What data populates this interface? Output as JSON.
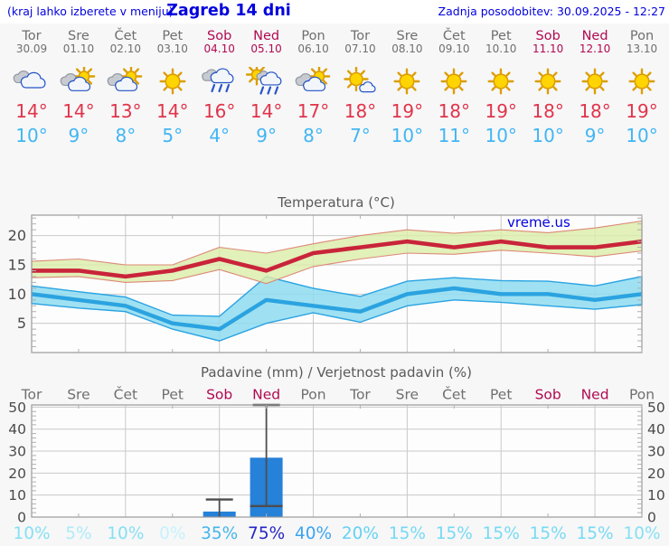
{
  "header": {
    "left_note": "(kraj lahko izberete v meniju)",
    "title": "Zagreb 14 dni",
    "updated": "Zadnja posodobitev: 30.09.2025 - 12:27"
  },
  "watermark": "vreme.us",
  "colors": {
    "header_blue": "#0202dd",
    "weekday": "#6f6f6f",
    "weekend": "#b00a50",
    "temp_max_text": "#e1344a",
    "temp_min_text": "#41b6f2",
    "line_max": "#c9243a",
    "line_min": "#2ba3e0",
    "band_max_fill": "#dcedaa",
    "band_max_edge": "#dd8877",
    "band_min_fill": "#8edcf0",
    "band_min_edge": "#2aa3e2",
    "bar_fill": "#2681d8",
    "whisker": "#4d4d4d",
    "grid": "#c9c9c9",
    "axis": "#9a9a9a",
    "chart_text": "#4a4a4a",
    "title_text": "#5a5a5a",
    "sun_fill": "#ffd400",
    "sun_stroke": "#dc9e00",
    "cloud_white": "#f2f6fb",
    "cloud_white_edge": "#2453c4",
    "cloud_gray": "#c7cbd1",
    "cloud_gray_edge": "#9298a0",
    "rain_blue": "#2856c8"
  },
  "days": [
    {
      "name": "Tor",
      "date": "30.09",
      "weekend": false,
      "icon": "cloudy",
      "tmax": "14°",
      "tmin": "10°",
      "prob": "10%",
      "prob_color": "#86e0f3"
    },
    {
      "name": "Sre",
      "date": "01.10",
      "weekend": false,
      "icon": "partly",
      "tmax": "14°",
      "tmin": "9°",
      "prob": "5%",
      "prob_color": "#aeebf7"
    },
    {
      "name": "Čet",
      "date": "02.10",
      "weekend": false,
      "icon": "partly",
      "tmax": "13°",
      "tmin": "8°",
      "prob": "10%",
      "prob_color": "#86e0f3"
    },
    {
      "name": "Pet",
      "date": "03.10",
      "weekend": false,
      "icon": "sunny",
      "tmax": "14°",
      "tmin": "5°",
      "prob": "0%",
      "prob_color": "#c6f2fb"
    },
    {
      "name": "Sob",
      "date": "04.10",
      "weekend": true,
      "icon": "rain",
      "tmax": "16°",
      "tmin": "4°",
      "prob": "35%",
      "prob_color": "#44b6ec"
    },
    {
      "name": "Ned",
      "date": "05.10",
      "weekend": true,
      "icon": "sunrain",
      "tmax": "14°",
      "tmin": "9°",
      "prob": "75%",
      "prob_color": "#2726c3"
    },
    {
      "name": "Pon",
      "date": "06.10",
      "weekend": false,
      "icon": "partly",
      "tmax": "17°",
      "tmin": "8°",
      "prob": "40%",
      "prob_color": "#3da4ef"
    },
    {
      "name": "Tor",
      "date": "07.10",
      "weekend": false,
      "icon": "mostlysunny",
      "tmax": "18°",
      "tmin": "7°",
      "prob": "20%",
      "prob_color": "#63d2f2"
    },
    {
      "name": "Sre",
      "date": "08.10",
      "weekend": false,
      "icon": "sunny",
      "tmax": "19°",
      "tmin": "10°",
      "prob": "15%",
      "prob_color": "#75daf3"
    },
    {
      "name": "Čet",
      "date": "09.10",
      "weekend": false,
      "icon": "sunny",
      "tmax": "18°",
      "tmin": "11°",
      "prob": "15%",
      "prob_color": "#75daf3"
    },
    {
      "name": "Pet",
      "date": "10.10",
      "weekend": false,
      "icon": "sunny",
      "tmax": "19°",
      "tmin": "10°",
      "prob": "15%",
      "prob_color": "#75daf3"
    },
    {
      "name": "Sob",
      "date": "11.10",
      "weekend": true,
      "icon": "sunny",
      "tmax": "18°",
      "tmin": "10°",
      "prob": "15%",
      "prob_color": "#75daf3"
    },
    {
      "name": "Ned",
      "date": "12.10",
      "weekend": true,
      "icon": "sunny",
      "tmax": "18°",
      "tmin": "9°",
      "prob": "15%",
      "prob_color": "#75daf3"
    },
    {
      "name": "Pon",
      "date": "13.10",
      "weekend": false,
      "icon": "sunny",
      "tmax": "19°",
      "tmin": "10°",
      "prob": "10%",
      "prob_color": "#86e0f3"
    }
  ],
  "chart_data": [
    {
      "type": "line",
      "title": "Temperatura (°C)",
      "categories": [
        "Tor 30.09",
        "Sre 01.10",
        "Čet 02.10",
        "Pet 03.10",
        "Sob 04.10",
        "Ned 05.10",
        "Pon 06.10",
        "Tor 07.10",
        "Sre 08.10",
        "Čet 09.10",
        "Pet 10.10",
        "Sob 11.10",
        "Ned 12.10",
        "Pon 13.10"
      ],
      "series": [
        {
          "name": "temp_max",
          "values": [
            14,
            14,
            13,
            14,
            16,
            14,
            17,
            18,
            19,
            18,
            19,
            18,
            18,
            19
          ]
        },
        {
          "name": "temp_max_upper",
          "values": [
            15.6,
            16.0,
            15.0,
            15.0,
            18.0,
            17.0,
            18.6,
            20.0,
            21.0,
            20.4,
            21.0,
            20.5,
            21.3,
            22.5
          ]
        },
        {
          "name": "temp_max_lower",
          "values": [
            12.8,
            13.0,
            12.0,
            12.3,
            14.2,
            11.8,
            14.7,
            16.0,
            17.0,
            16.8,
            17.5,
            17.0,
            16.4,
            17.4
          ]
        },
        {
          "name": "temp_min",
          "values": [
            10,
            9,
            8,
            5,
            4,
            9,
            8,
            7,
            10,
            11,
            10,
            10,
            9,
            10
          ]
        },
        {
          "name": "temp_min_upper",
          "values": [
            11.4,
            10.4,
            9.5,
            6.4,
            6.2,
            13.0,
            11.0,
            9.6,
            12.2,
            12.8,
            12.3,
            12.2,
            11.4,
            13.0
          ]
        },
        {
          "name": "temp_min_lower",
          "values": [
            8.4,
            7.6,
            7.0,
            4.0,
            2.0,
            5.0,
            6.8,
            5.2,
            8.0,
            9.0,
            8.6,
            8.0,
            7.4,
            8.2
          ]
        }
      ],
      "ylim": [
        0,
        23.5
      ],
      "yticks": [
        5,
        10,
        15,
        20
      ],
      "grid": true,
      "legend": "none"
    },
    {
      "type": "bar",
      "title": "Padavine (mm) / Verjetnost padavin (%)",
      "categories": [
        "Tor",
        "Sre",
        "Čet",
        "Pet",
        "Sob",
        "Ned",
        "Pon",
        "Tor",
        "Sre",
        "Čet",
        "Pet",
        "Sob",
        "Ned",
        "Pon"
      ],
      "values": [
        0,
        0,
        0,
        0,
        2.5,
        27,
        0,
        0,
        0,
        0,
        0,
        0,
        0,
        0
      ],
      "whisker_low": [
        null,
        null,
        null,
        null,
        0,
        5,
        null,
        null,
        null,
        null,
        null,
        null,
        null,
        null
      ],
      "whisker_high": [
        null,
        null,
        null,
        null,
        8,
        51,
        null,
        null,
        null,
        null,
        null,
        null,
        null,
        null
      ],
      "probabilities": [
        "10%",
        "5%",
        "10%",
        "0%",
        "35%",
        "75%",
        "40%",
        "20%",
        "15%",
        "15%",
        "15%",
        "15%",
        "15%",
        "10%"
      ],
      "ylim": [
        0,
        51
      ],
      "yticks": [
        0,
        10,
        20,
        30,
        40,
        50
      ],
      "grid": true,
      "legend": "none"
    }
  ]
}
